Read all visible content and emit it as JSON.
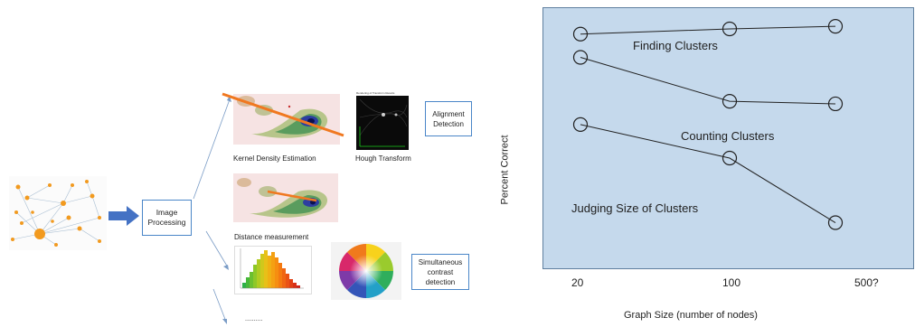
{
  "pipeline": {
    "process_box": "Image\nProcessing",
    "alignment_box": "Alignment\nDetection",
    "contrast_box": "Simultaneous\ncontrast\ndetection",
    "kde_caption": "Kernel Density Estimation",
    "hough_caption": "Hough Transform",
    "distance_caption": "Distance measurement",
    "ellipsis": "..........",
    "hough_title": "Rendering of Transform Results"
  },
  "chart": {
    "ylabel": "Percent Correct",
    "xlabel": "Graph Size (number of nodes)",
    "ticks": [
      "20",
      "100",
      "500?"
    ],
    "series_labels": [
      "Finding Clusters",
      "Counting Clusters",
      "Judging Size of Clusters"
    ]
  },
  "chart_data": {
    "type": "line",
    "title": "",
    "xlabel": "Graph Size (number of nodes)",
    "ylabel": "Percent Correct",
    "categories": [
      "20",
      "100",
      "500?"
    ],
    "series": [
      {
        "name": "Finding Clusters",
        "values": [
          0.91,
          0.93,
          0.94
        ]
      },
      {
        "name": "Counting Clusters",
        "values": [
          0.82,
          0.65,
          0.64
        ]
      },
      {
        "name": "Judging Size of Clusters",
        "values": [
          0.56,
          0.43,
          0.18
        ]
      }
    ],
    "ylim": [
      0,
      1
    ],
    "grid": false,
    "legend": "none",
    "colors": {
      "panel": "#c5d9ec",
      "line": "#222222"
    }
  }
}
